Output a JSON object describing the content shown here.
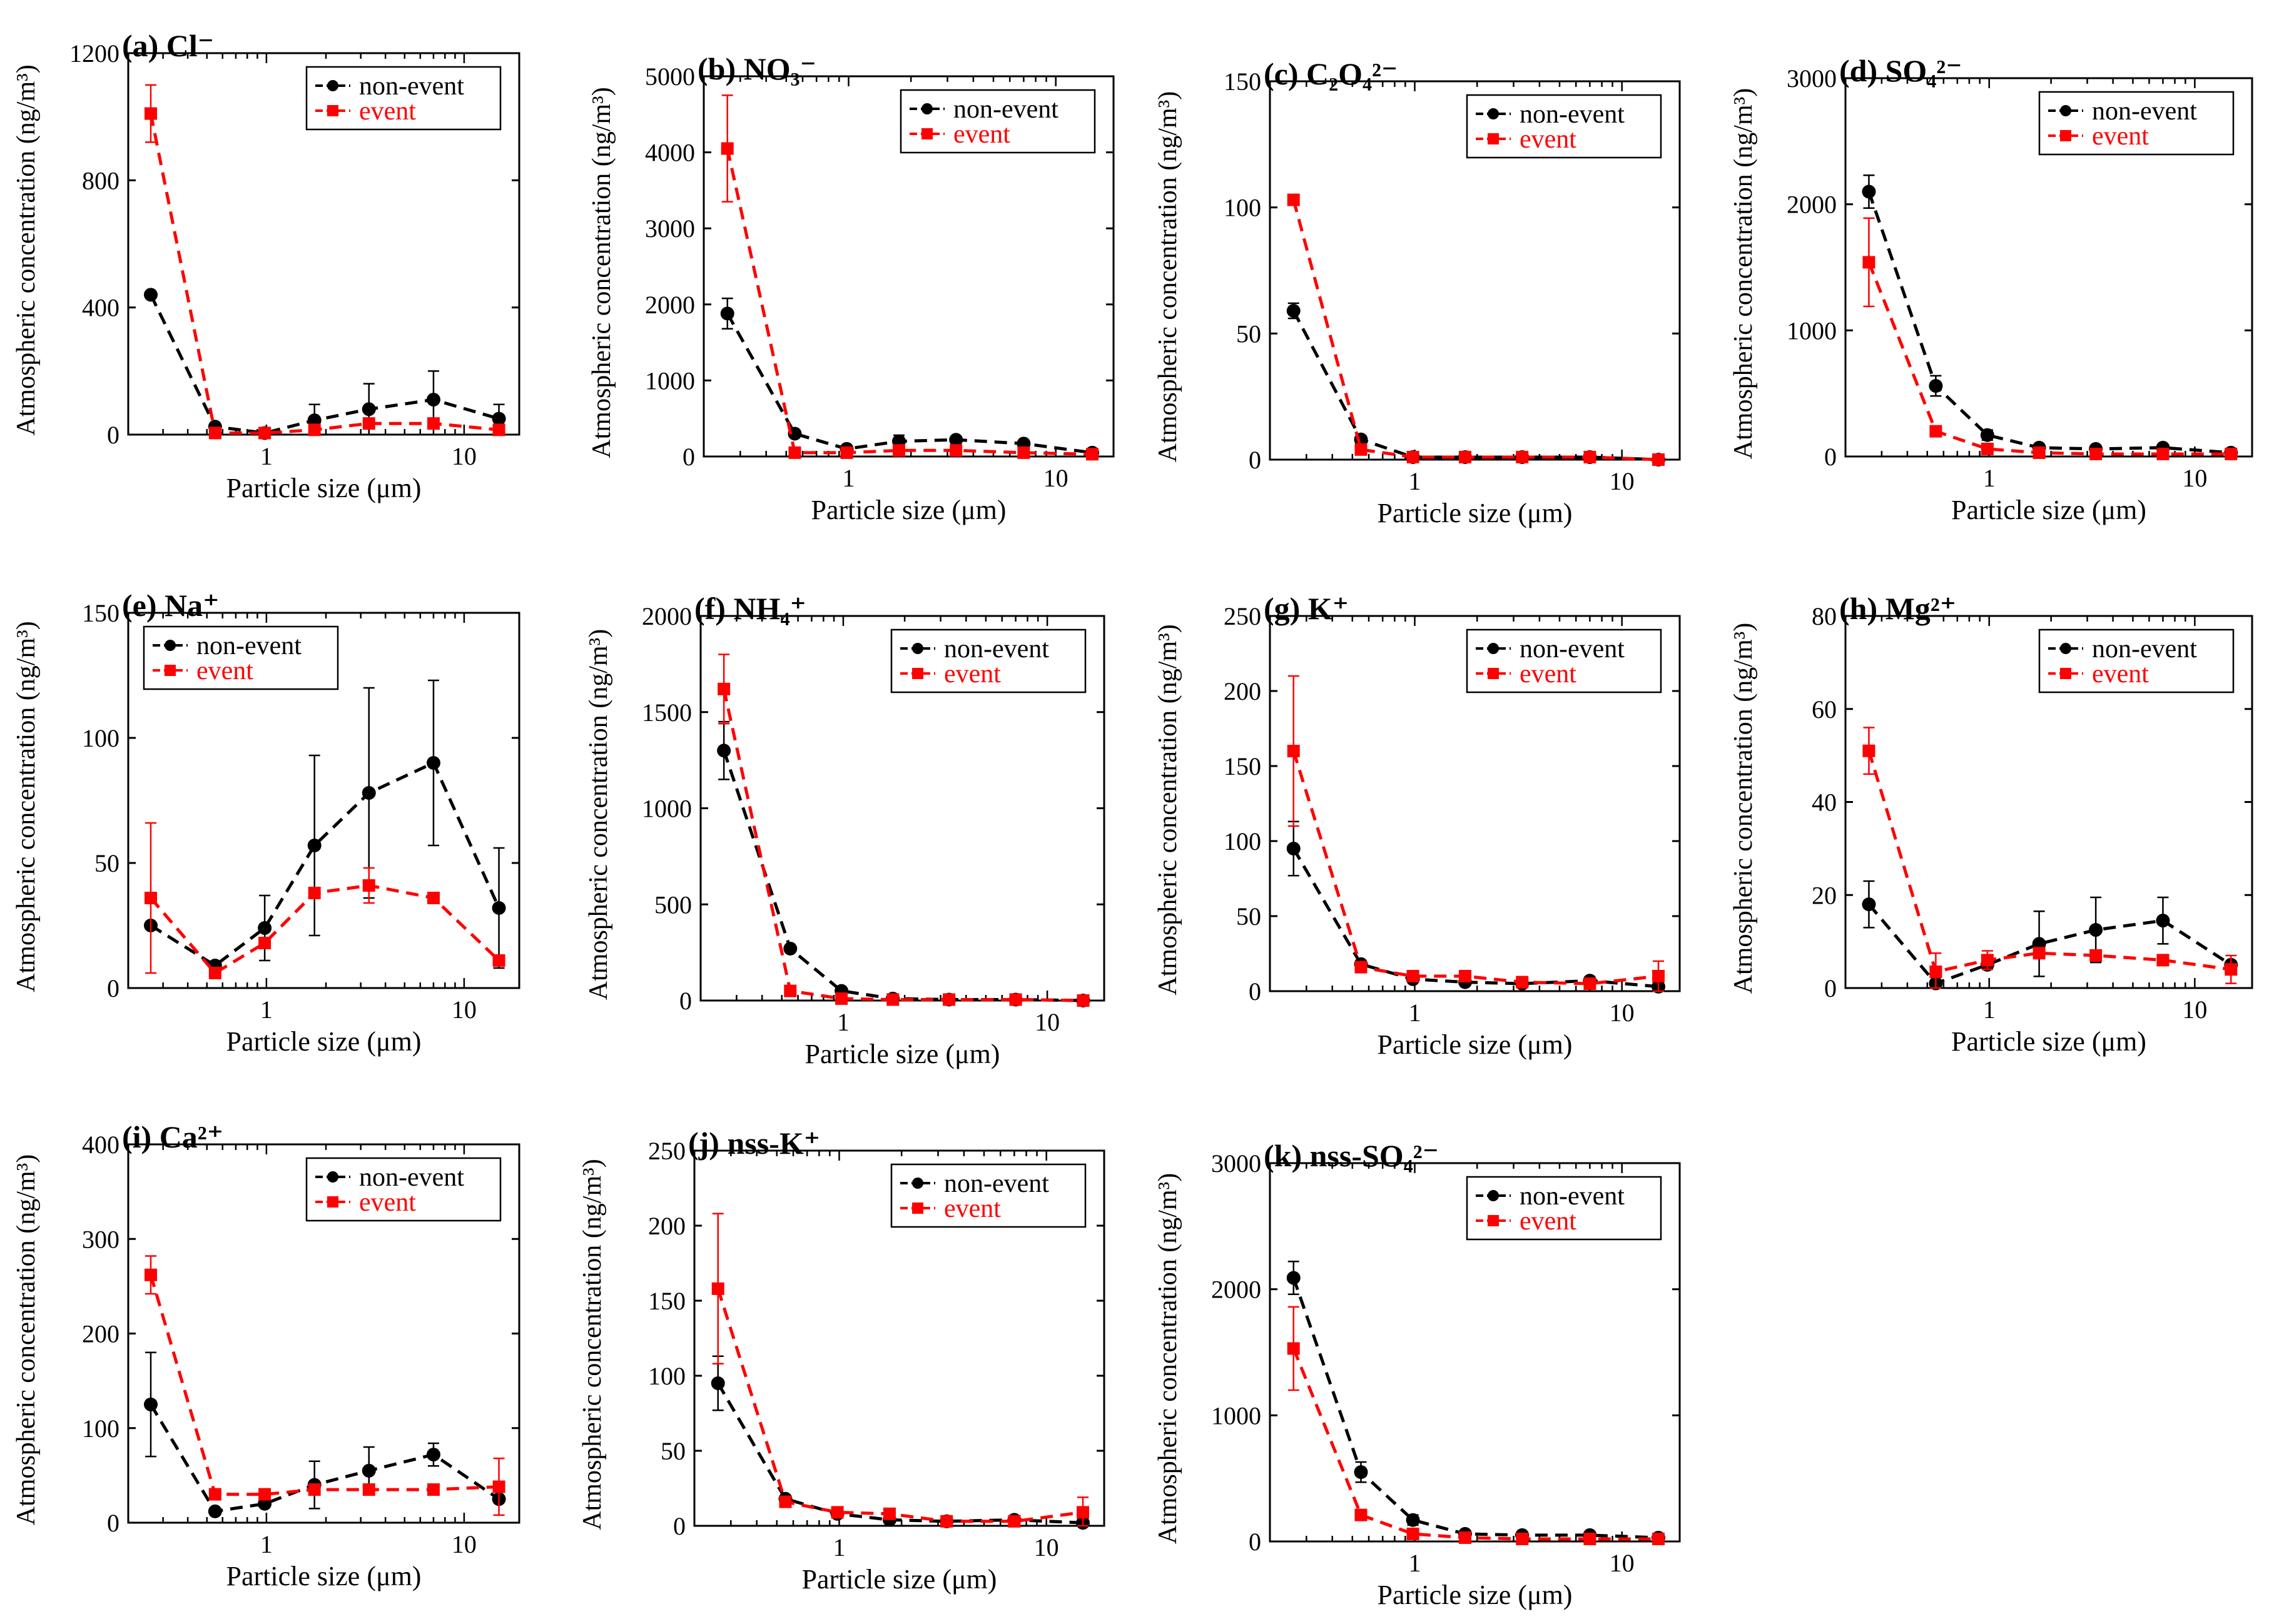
{
  "figure": {
    "x_axis_label": "Particle size (μm)",
    "y_axis_label": "Atmospheric concentration (ng/m³)",
    "legend": [
      "non-event",
      "event"
    ],
    "colors": {
      "non_event": "#000000",
      "event": "#ff0000"
    }
  },
  "chart_data": [
    {
      "id": "a",
      "type": "line",
      "title": "(a) Cl⁻",
      "x_scale": "log",
      "xlabel": "Particle size (μm)",
      "ylabel": "Atmospheric concentration (ng/m³)",
      "x_ticks": [
        1,
        10
      ],
      "y_ticks": [
        0,
        400,
        800,
        1200
      ],
      "ylim": [
        0,
        1200
      ],
      "legend_position": "top-right",
      "x": [
        0.26,
        0.55,
        0.98,
        1.75,
        3.3,
        7.0,
        15.0
      ],
      "series": [
        {
          "name": "non-event",
          "values": [
            440,
            25,
            5,
            45,
            80,
            110,
            50
          ],
          "errors": [
            0,
            0,
            0,
            50,
            80,
            90,
            45
          ]
        },
        {
          "name": "event",
          "values": [
            1010,
            5,
            5,
            15,
            35,
            35,
            15
          ],
          "errors": [
            90,
            0,
            0,
            0,
            0,
            0,
            0
          ]
        }
      ]
    },
    {
      "id": "b",
      "type": "line",
      "title": "(b) NO₃⁻",
      "x_scale": "log",
      "xlabel": "Particle size (μm)",
      "ylabel": "Atmospheric concentration (ng/m³)",
      "x_ticks": [
        1,
        10
      ],
      "y_ticks": [
        0,
        1000,
        2000,
        3000,
        4000,
        5000
      ],
      "ylim": [
        0,
        5000
      ],
      "legend_position": "top-right",
      "x": [
        0.26,
        0.55,
        0.98,
        1.75,
        3.3,
        7.0,
        15.0
      ],
      "series": [
        {
          "name": "non-event",
          "values": [
            1880,
            300,
            100,
            200,
            220,
            170,
            50
          ],
          "errors": [
            200,
            0,
            0,
            80,
            0,
            0,
            0
          ]
        },
        {
          "name": "event",
          "values": [
            4050,
            50,
            50,
            80,
            80,
            50,
            30
          ],
          "errors": [
            700,
            0,
            0,
            0,
            0,
            0,
            0
          ]
        }
      ]
    },
    {
      "id": "c",
      "type": "line",
      "title": "(c) C₂O₄²⁻",
      "x_scale": "log",
      "xlabel": "Particle size (μm)",
      "ylabel": "Atmospheric concentration (ng/m³)",
      "x_ticks": [
        1,
        10
      ],
      "y_ticks": [
        0,
        50,
        100,
        150
      ],
      "ylim": [
        0,
        150
      ],
      "legend_position": "top-right",
      "x": [
        0.26,
        0.55,
        0.98,
        1.75,
        3.3,
        7.0,
        15.0
      ],
      "series": [
        {
          "name": "non-event",
          "values": [
            59,
            8,
            1,
            1,
            1,
            1,
            0
          ],
          "errors": [
            3,
            0,
            0,
            0,
            0,
            0,
            0
          ]
        },
        {
          "name": "event",
          "values": [
            103,
            4,
            1,
            1,
            1,
            1,
            0
          ],
          "errors": [
            2,
            0,
            0,
            0,
            0,
            0,
            0
          ]
        }
      ]
    },
    {
      "id": "d",
      "type": "line",
      "title": "(d) SO₄²⁻",
      "x_scale": "log",
      "xlabel": "Particle size (μm)",
      "ylabel": "Atmospheric concentration (ng/m³)",
      "x_ticks": [
        1,
        10
      ],
      "y_ticks": [
        0,
        1000,
        2000,
        3000
      ],
      "ylim": [
        0,
        3000
      ],
      "legend_position": "top-right",
      "x": [
        0.26,
        0.55,
        0.98,
        1.75,
        3.3,
        7.0,
        15.0
      ],
      "series": [
        {
          "name": "non-event",
          "values": [
            2100,
            560,
            170,
            70,
            60,
            70,
            30
          ],
          "errors": [
            130,
            80,
            40,
            0,
            0,
            0,
            0
          ]
        },
        {
          "name": "event",
          "values": [
            1540,
            200,
            60,
            30,
            20,
            20,
            20
          ],
          "errors": [
            350,
            0,
            0,
            0,
            0,
            0,
            0
          ]
        }
      ]
    },
    {
      "id": "e",
      "type": "line",
      "title": "(e) Na⁺",
      "x_scale": "log",
      "xlabel": "Particle size (μm)",
      "ylabel": "Atmospheric concentration (ng/m³)",
      "x_ticks": [
        1,
        10
      ],
      "y_ticks": [
        0,
        50,
        100,
        150
      ],
      "ylim": [
        0,
        150
      ],
      "legend_position": "top-left",
      "x": [
        0.26,
        0.55,
        0.98,
        1.75,
        3.3,
        7.0,
        15.0
      ],
      "series": [
        {
          "name": "non-event",
          "values": [
            25,
            9,
            24,
            57,
            78,
            90,
            32
          ],
          "errors": [
            0,
            0,
            13,
            36,
            42,
            33,
            24
          ]
        },
        {
          "name": "event",
          "values": [
            36,
            6,
            18,
            38,
            41,
            36,
            11
          ],
          "errors": [
            30,
            0,
            0,
            0,
            7,
            0,
            0
          ]
        }
      ]
    },
    {
      "id": "f",
      "type": "line",
      "title": "(f) NH₄⁺",
      "x_scale": "log",
      "xlabel": "Particle size (μm)",
      "ylabel": "Atmospheric concentration (ng/m³)",
      "x_ticks": [
        1,
        10
      ],
      "y_ticks": [
        0,
        500,
        1000,
        1500,
        2000
      ],
      "ylim": [
        0,
        2000
      ],
      "legend_position": "top-right",
      "x": [
        0.26,
        0.55,
        0.98,
        1.75,
        3.3,
        7.0,
        15.0
      ],
      "series": [
        {
          "name": "non-event",
          "values": [
            1300,
            270,
            50,
            10,
            5,
            5,
            0
          ],
          "errors": [
            150,
            0,
            0,
            0,
            0,
            0,
            0
          ]
        },
        {
          "name": "event",
          "values": [
            1620,
            50,
            10,
            5,
            5,
            5,
            0
          ],
          "errors": [
            180,
            0,
            0,
            0,
            0,
            0,
            0
          ]
        }
      ]
    },
    {
      "id": "g",
      "type": "line",
      "title": "(g) K⁺",
      "x_scale": "log",
      "xlabel": "Particle size (μm)",
      "ylabel": "Atmospheric concentration (ng/m³)",
      "x_ticks": [
        1,
        10
      ],
      "y_ticks": [
        0,
        50,
        100,
        150,
        200,
        250
      ],
      "ylim": [
        0,
        250
      ],
      "legend_position": "top-right",
      "x": [
        0.26,
        0.55,
        0.98,
        1.75,
        3.3,
        7.0,
        15.0
      ],
      "series": [
        {
          "name": "non-event",
          "values": [
            95,
            18,
            8,
            6,
            5,
            7,
            3
          ],
          "errors": [
            18,
            0,
            0,
            0,
            0,
            0,
            0
          ]
        },
        {
          "name": "event",
          "values": [
            160,
            16,
            10,
            10,
            6,
            5,
            10
          ],
          "errors": [
            50,
            0,
            0,
            0,
            0,
            0,
            10
          ]
        }
      ]
    },
    {
      "id": "h",
      "type": "line",
      "title": "(h) Mg²⁺",
      "x_scale": "log",
      "xlabel": "Particle size (μm)",
      "ylabel": "Atmospheric concentration (ng/m³)",
      "x_ticks": [
        1,
        10
      ],
      "y_ticks": [
        0,
        20,
        40,
        60,
        80
      ],
      "ylim": [
        0,
        80
      ],
      "legend_position": "top-right",
      "x": [
        0.26,
        0.55,
        0.98,
        1.75,
        3.3,
        7.0,
        15.0
      ],
      "series": [
        {
          "name": "non-event",
          "values": [
            18,
            1,
            5,
            9.5,
            12.5,
            14.5,
            5
          ],
          "errors": [
            5,
            0,
            0,
            7,
            7,
            5,
            0
          ]
        },
        {
          "name": "event",
          "values": [
            51,
            3.5,
            6,
            7.5,
            7,
            6,
            4
          ],
          "errors": [
            5,
            4,
            2,
            0,
            0,
            0,
            3
          ]
        }
      ]
    },
    {
      "id": "i",
      "type": "line",
      "title": "(i) Ca²⁺",
      "x_scale": "log",
      "xlabel": "Particle size (μm)",
      "ylabel": "Atmospheric concentration (ng/m³)",
      "x_ticks": [
        1,
        10
      ],
      "y_ticks": [
        0,
        100,
        200,
        300,
        400
      ],
      "ylim": [
        0,
        400
      ],
      "legend_position": "top-right",
      "x": [
        0.26,
        0.55,
        0.98,
        1.75,
        3.3,
        7.0,
        15.0
      ],
      "series": [
        {
          "name": "non-event",
          "values": [
            125,
            12,
            20,
            40,
            55,
            72,
            25
          ],
          "errors": [
            55,
            0,
            0,
            25,
            25,
            12,
            0
          ]
        },
        {
          "name": "event",
          "values": [
            262,
            30,
            30,
            35,
            35,
            35,
            38
          ],
          "errors": [
            20,
            0,
            0,
            0,
            0,
            0,
            30
          ]
        }
      ]
    },
    {
      "id": "j",
      "type": "line",
      "title": "(j) nss-K⁺",
      "x_scale": "log",
      "xlabel": "Particle size (μm)",
      "ylabel": "Atmospheric concentration (ng/m³)",
      "x_ticks": [
        1,
        10
      ],
      "y_ticks": [
        0,
        50,
        100,
        150,
        200,
        250
      ],
      "ylim": [
        0,
        250
      ],
      "legend_position": "top-right",
      "x": [
        0.26,
        0.55,
        0.98,
        1.75,
        3.3,
        7.0,
        15.0
      ],
      "series": [
        {
          "name": "non-event",
          "values": [
            95,
            18,
            8,
            4,
            3,
            4,
            2
          ],
          "errors": [
            18,
            0,
            0,
            0,
            0,
            0,
            0
          ]
        },
        {
          "name": "event",
          "values": [
            158,
            16,
            9,
            8,
            3,
            3,
            9
          ],
          "errors": [
            50,
            0,
            0,
            0,
            0,
            0,
            10
          ]
        }
      ]
    },
    {
      "id": "k",
      "type": "line",
      "title": "(k) nss-SO₄²⁻",
      "x_scale": "log",
      "xlabel": "Particle size (μm)",
      "ylabel": "Atmospheric concentration (ng/m³)",
      "x_ticks": [
        1,
        10
      ],
      "y_ticks": [
        0,
        1000,
        2000,
        3000
      ],
      "ylim": [
        0,
        3000
      ],
      "legend_position": "top-right",
      "x": [
        0.26,
        0.55,
        0.98,
        1.75,
        3.3,
        7.0,
        15.0
      ],
      "series": [
        {
          "name": "non-event",
          "values": [
            2090,
            550,
            170,
            60,
            50,
            50,
            30
          ],
          "errors": [
            130,
            80,
            40,
            0,
            0,
            0,
            0
          ]
        },
        {
          "name": "event",
          "values": [
            1530,
            210,
            60,
            30,
            20,
            20,
            20
          ],
          "errors": [
            330,
            0,
            0,
            0,
            0,
            0,
            0
          ]
        }
      ]
    }
  ]
}
